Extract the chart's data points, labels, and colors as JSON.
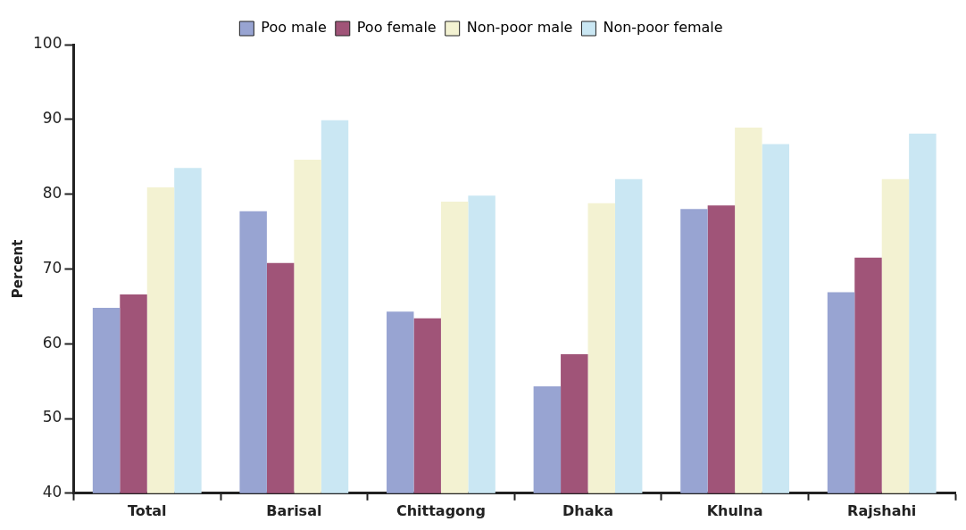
{
  "chart_data": {
    "type": "bar",
    "ylabel": "Percent",
    "categories": [
      "Total",
      "Barisal",
      "Chittagong",
      "Dhaka",
      "Khulna",
      "Rajshahi"
    ],
    "series": [
      {
        "name": "Poo male",
        "color": "#98a4d2",
        "values": [
          64.8,
          77.7,
          64.3,
          54.3,
          78.0,
          66.9
        ]
      },
      {
        "name": "Poo female",
        "color": "#a05478",
        "values": [
          66.6,
          70.8,
          63.4,
          58.6,
          78.5,
          71.5
        ]
      },
      {
        "name": "Non-poor male",
        "color": "#f3f2d2",
        "values": [
          80.9,
          84.6,
          79.0,
          78.8,
          88.9,
          82.0
        ]
      },
      {
        "name": "Non-poor female",
        "color": "#cae7f3",
        "values": [
          83.5,
          89.9,
          79.8,
          82.0,
          86.7,
          88.1
        ]
      }
    ],
    "ylim": [
      40,
      100
    ],
    "yticks": [
      40,
      50,
      60,
      70,
      80,
      90,
      100
    ],
    "grid": false,
    "legend": "top"
  }
}
